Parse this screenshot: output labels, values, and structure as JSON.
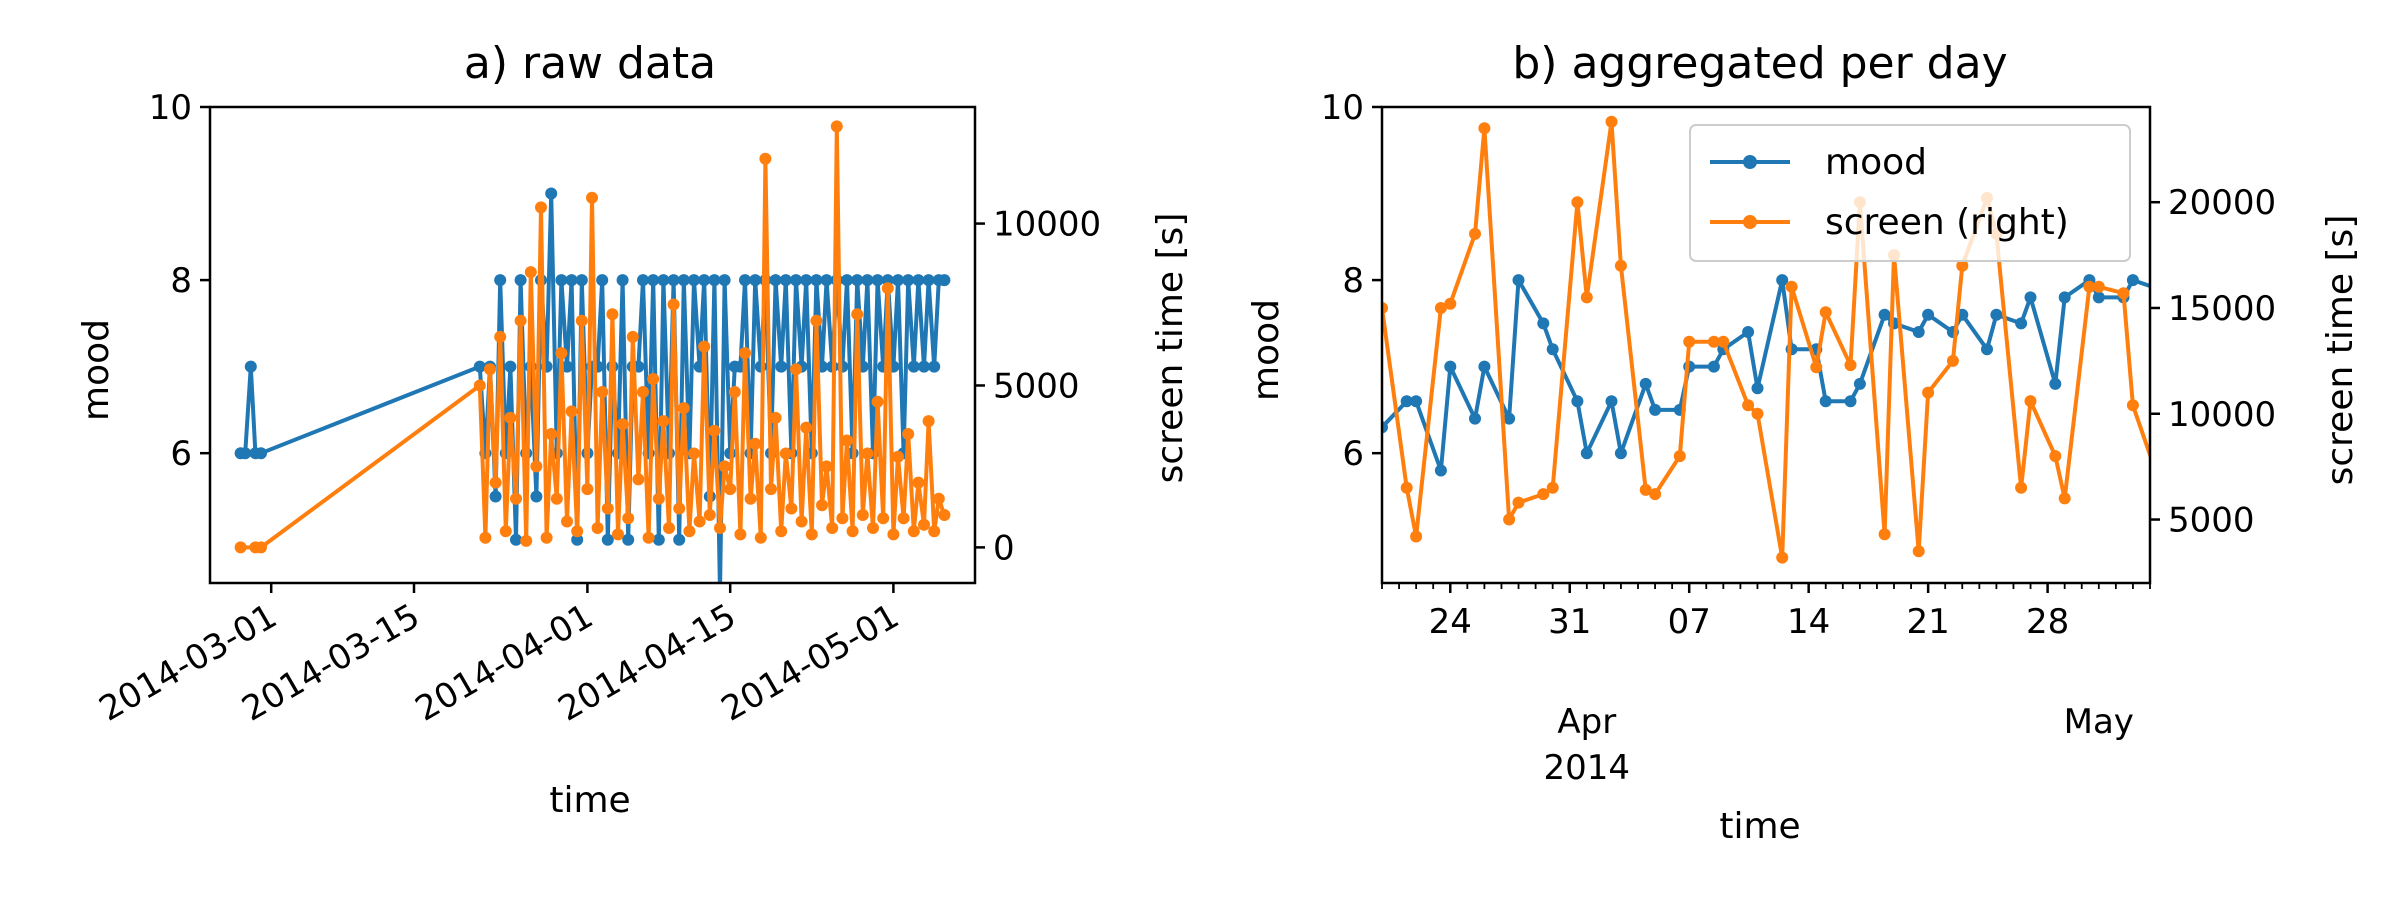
{
  "chart_data": [
    {
      "type": "line",
      "title": "a) raw data",
      "xlabel": "time",
      "ylabel": "mood",
      "y2label": "screen time [s]",
      "xlim": [
        "2014-02-23",
        "2014-05-09"
      ],
      "ylim": [
        4.5,
        10
      ],
      "y2lim": [
        -1100,
        13600
      ],
      "yticks": [
        6,
        8,
        10
      ],
      "y2ticks": [
        0,
        5000,
        10000
      ],
      "xtick_labels": [
        "2014-03-01",
        "2014-03-15",
        "2014-04-01",
        "2014-04-15",
        "2014-05-01"
      ],
      "grid": false,
      "series": [
        {
          "key": "mood",
          "axis": "left",
          "color": "#1f77b4",
          "x": [
            "2014-02-26",
            "2014-02-26",
            "2014-02-27",
            "2014-02-27",
            "2014-02-28",
            "2014-03-21",
            "2014-03-22",
            "2014-03-22",
            "2014-03-23",
            "2014-03-23",
            "2014-03-24",
            "2014-03-24",
            "2014-03-25",
            "2014-03-25",
            "2014-03-26",
            "2014-03-26",
            "2014-03-27",
            "2014-03-27",
            "2014-03-28",
            "2014-03-28",
            "2014-03-29",
            "2014-03-29",
            "2014-03-30",
            "2014-03-30",
            "2014-03-31",
            "2014-03-31",
            "2014-04-01",
            "2014-04-01",
            "2014-04-02",
            "2014-04-02",
            "2014-04-03",
            "2014-04-03",
            "2014-04-04",
            "2014-04-04",
            "2014-04-05",
            "2014-04-05",
            "2014-04-06",
            "2014-04-06",
            "2014-04-07",
            "2014-04-07",
            "2014-04-08",
            "2014-04-08",
            "2014-04-09",
            "2014-04-09",
            "2014-04-10",
            "2014-04-10",
            "2014-04-11",
            "2014-04-11",
            "2014-04-12",
            "2014-04-12",
            "2014-04-13",
            "2014-04-13",
            "2014-04-14",
            "2014-04-14",
            "2014-04-15",
            "2014-04-15",
            "2014-04-16",
            "2014-04-16",
            "2014-04-17",
            "2014-04-17",
            "2014-04-18",
            "2014-04-18",
            "2014-04-19",
            "2014-04-19",
            "2014-04-20",
            "2014-04-20",
            "2014-04-21",
            "2014-04-21",
            "2014-04-22",
            "2014-04-22",
            "2014-04-23",
            "2014-04-23",
            "2014-04-24",
            "2014-04-24",
            "2014-04-25",
            "2014-04-25",
            "2014-04-26",
            "2014-04-26",
            "2014-04-27",
            "2014-04-27",
            "2014-04-28",
            "2014-04-28",
            "2014-04-29",
            "2014-04-29",
            "2014-04-30",
            "2014-04-30",
            "2014-05-01",
            "2014-05-01",
            "2014-05-02",
            "2014-05-02",
            "2014-05-03",
            "2014-05-03",
            "2014-05-04",
            "2014-05-04",
            "2014-05-05",
            "2014-05-05",
            "2014-05-06"
          ],
          "values": [
            6,
            6,
            7,
            6,
            6,
            7,
            6,
            7,
            5.5,
            8,
            6,
            7,
            5,
            8,
            6,
            7,
            5.5,
            8,
            7,
            9,
            6,
            8,
            7,
            8,
            5,
            8,
            6,
            7,
            7,
            8,
            5,
            7,
            6,
            8,
            5,
            7,
            7,
            8,
            6,
            8,
            5,
            8,
            6,
            8,
            5,
            8,
            6,
            8,
            7,
            8,
            5.5,
            8,
            4.4,
            8,
            6,
            7,
            7,
            8,
            6,
            8,
            7,
            8,
            6,
            8,
            7,
            8,
            6,
            8,
            7,
            8,
            6,
            8,
            7,
            8,
            7,
            8,
            7,
            8,
            6,
            8,
            7,
            8,
            6,
            8,
            7,
            8,
            7,
            8,
            6,
            8,
            7,
            8,
            7,
            8,
            7,
            8,
            8
          ]
        },
        {
          "key": "screen",
          "axis": "right",
          "color": "#ff7f0e",
          "x": [
            "2014-02-26",
            "2014-02-27",
            "2014-02-28",
            "2014-03-21",
            "2014-03-22",
            "2014-03-22",
            "2014-03-23",
            "2014-03-23",
            "2014-03-24",
            "2014-03-24",
            "2014-03-25",
            "2014-03-25",
            "2014-03-26",
            "2014-03-26",
            "2014-03-27",
            "2014-03-27",
            "2014-03-28",
            "2014-03-28",
            "2014-03-29",
            "2014-03-29",
            "2014-03-30",
            "2014-03-30",
            "2014-03-31",
            "2014-03-31",
            "2014-04-01",
            "2014-04-01",
            "2014-04-02",
            "2014-04-02",
            "2014-04-03",
            "2014-04-03",
            "2014-04-04",
            "2014-04-04",
            "2014-04-05",
            "2014-04-05",
            "2014-04-06",
            "2014-04-06",
            "2014-04-07",
            "2014-04-07",
            "2014-04-08",
            "2014-04-08",
            "2014-04-09",
            "2014-04-09",
            "2014-04-10",
            "2014-04-10",
            "2014-04-11",
            "2014-04-11",
            "2014-04-12",
            "2014-04-12",
            "2014-04-13",
            "2014-04-13",
            "2014-04-14",
            "2014-04-14",
            "2014-04-15",
            "2014-04-15",
            "2014-04-16",
            "2014-04-16",
            "2014-04-17",
            "2014-04-17",
            "2014-04-18",
            "2014-04-18",
            "2014-04-19",
            "2014-04-19",
            "2014-04-20",
            "2014-04-20",
            "2014-04-21",
            "2014-04-21",
            "2014-04-22",
            "2014-04-22",
            "2014-04-23",
            "2014-04-23",
            "2014-04-24",
            "2014-04-24",
            "2014-04-25",
            "2014-04-25",
            "2014-04-26",
            "2014-04-26",
            "2014-04-27",
            "2014-04-27",
            "2014-04-28",
            "2014-04-28",
            "2014-04-29",
            "2014-04-29",
            "2014-04-30",
            "2014-04-30",
            "2014-05-01",
            "2014-05-01",
            "2014-05-02",
            "2014-05-02",
            "2014-05-03",
            "2014-05-03",
            "2014-05-04",
            "2014-05-04",
            "2014-05-05",
            "2014-05-05",
            "2014-05-06"
          ],
          "values": [
            0,
            0,
            0,
            5000,
            300,
            5500,
            2000,
            6500,
            500,
            4000,
            1500,
            7000,
            200,
            8500,
            2500,
            10500,
            300,
            3500,
            1500,
            6000,
            800,
            4200,
            500,
            7000,
            1800,
            10800,
            600,
            4800,
            1200,
            7200,
            400,
            3800,
            900,
            6500,
            2100,
            4800,
            300,
            5200,
            1500,
            3900,
            600,
            7500,
            1200,
            4300,
            500,
            2900,
            800,
            6200,
            1000,
            3600,
            600,
            2500,
            1800,
            4800,
            400,
            6000,
            1500,
            3200,
            300,
            12000,
            1800,
            4000,
            500,
            2900,
            1200,
            5500,
            800,
            3700,
            400,
            7000,
            1300,
            2500,
            600,
            13000,
            900,
            3300,
            500,
            7200,
            1000,
            2900,
            600,
            4500,
            900,
            8000,
            400,
            2800,
            900,
            3500,
            500,
            2000,
            700,
            3900,
            500,
            1500,
            1000
          ]
        }
      ]
    },
    {
      "type": "line",
      "title": "b) aggregated per day",
      "xlabel": "time",
      "ylabel": "mood",
      "y2label": "screen time [s]",
      "xlim": [
        "2014-03-20",
        "2014-05-04"
      ],
      "ylim": [
        4.5,
        10
      ],
      "y2lim": [
        2000,
        24500
      ],
      "yticks": [
        6,
        8,
        10
      ],
      "y2ticks": [
        5000,
        10000,
        15000,
        20000
      ],
      "xtick_labels": [
        "24",
        "31",
        "07",
        "14",
        "21",
        "28"
      ],
      "xtick_label_dates": [
        "2014-03-24",
        "2014-03-31",
        "2014-04-07",
        "2014-04-14",
        "2014-04-21",
        "2014-04-28"
      ],
      "month_labels": [
        {
          "text": "Apr\n2014",
          "date": "2014-04-01"
        },
        {
          "text": "May",
          "date": "2014-05-01"
        }
      ],
      "grid": false,
      "legend": {
        "position": "top-right",
        "entries": [
          "mood",
          "screen (right)"
        ]
      },
      "series": [
        {
          "key": "mood",
          "name": "mood",
          "axis": "left",
          "color": "#1f77b4",
          "x": [
            "2014-03-20",
            "2014-03-21",
            "2014-03-22",
            "2014-03-23",
            "2014-03-24",
            "2014-03-25",
            "2014-03-26",
            "2014-03-27",
            "2014-03-28",
            "2014-03-29",
            "2014-03-30",
            "2014-03-31",
            "2014-04-01",
            "2014-04-02",
            "2014-04-03",
            "2014-04-04",
            "2014-04-05",
            "2014-04-06",
            "2014-04-07",
            "2014-04-08",
            "2014-04-09",
            "2014-04-10",
            "2014-04-11",
            "2014-04-12",
            "2014-04-13",
            "2014-04-14",
            "2014-04-15",
            "2014-04-16",
            "2014-04-17",
            "2014-04-18",
            "2014-04-19",
            "2014-04-20",
            "2014-04-21",
            "2014-04-22",
            "2014-04-23",
            "2014-04-24",
            "2014-04-25",
            "2014-04-26",
            "2014-04-27",
            "2014-04-28",
            "2014-04-29",
            "2014-04-30",
            "2014-05-01",
            "2014-05-02",
            "2014-05-03",
            "2014-05-04"
          ],
          "values": [
            6.3,
            6.6,
            6.6,
            5.8,
            7.0,
            6.4,
            7.0,
            6.4,
            8.0,
            7.5,
            7.2,
            6.6,
            6.0,
            6.6,
            6.0,
            6.8,
            6.5,
            6.5,
            7.0,
            7.0,
            7.2,
            7.4,
            6.75,
            8.0,
            7.2,
            7.2,
            6.6,
            6.6,
            6.8,
            7.6,
            7.5,
            7.4,
            7.6,
            7.4,
            7.6,
            7.2,
            7.6,
            7.5,
            7.8,
            6.8,
            7.8,
            8.0,
            7.8,
            7.8,
            8.0,
            7.9
          ]
        },
        {
          "key": "screen",
          "name": "screen (right)",
          "axis": "right",
          "color": "#ff7f0e",
          "x": [
            "2014-03-20",
            "2014-03-21",
            "2014-03-22",
            "2014-03-23",
            "2014-03-24",
            "2014-03-25",
            "2014-03-26",
            "2014-03-27",
            "2014-03-28",
            "2014-03-29",
            "2014-03-30",
            "2014-03-31",
            "2014-04-01",
            "2014-04-02",
            "2014-04-03",
            "2014-04-04",
            "2014-04-05",
            "2014-04-06",
            "2014-04-07",
            "2014-04-08",
            "2014-04-09",
            "2014-04-10",
            "2014-04-11",
            "2014-04-12",
            "2014-04-13",
            "2014-04-14",
            "2014-04-15",
            "2014-04-16",
            "2014-04-17",
            "2014-04-18",
            "2014-04-19",
            "2014-04-20",
            "2014-04-21",
            "2014-04-22",
            "2014-04-23",
            "2014-04-24",
            "2014-04-25",
            "2014-04-26",
            "2014-04-27",
            "2014-04-28",
            "2014-04-29",
            "2014-04-30",
            "2014-05-01",
            "2014-05-02",
            "2014-05-03",
            "2014-05-04"
          ],
          "values": [
            15000,
            6500,
            4200,
            15000,
            15200,
            18500,
            23500,
            5000,
            5800,
            6200,
            6500,
            20000,
            15500,
            23800,
            17000,
            6400,
            6200,
            8000,
            13400,
            13400,
            13400,
            10400,
            10000,
            3200,
            16000,
            12200,
            14800,
            12300,
            20000,
            4300,
            17500,
            3500,
            11000,
            12500,
            17000,
            20200,
            18500,
            6500,
            10600,
            8000,
            6000,
            16000,
            16000,
            15700,
            10400,
            7000
          ]
        }
      ]
    }
  ]
}
